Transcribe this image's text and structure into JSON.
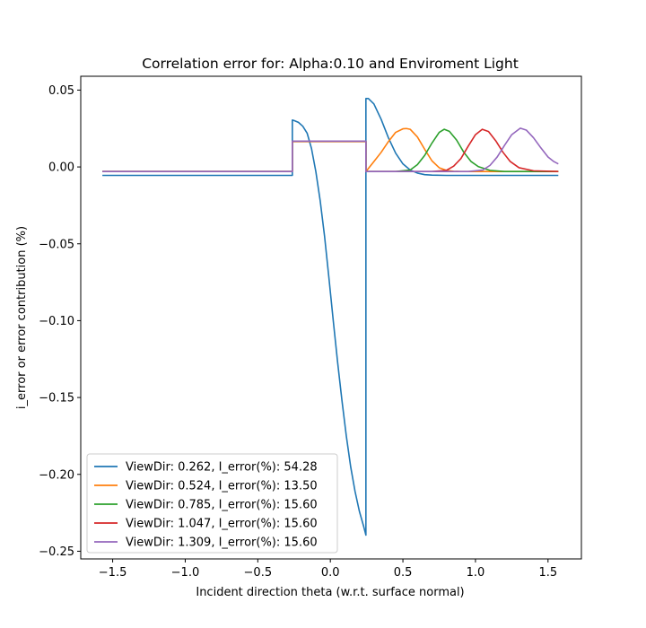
{
  "chart_data": {
    "type": "line",
    "title": "Correlation error for: Alpha:0.10 and Enviroment Light",
    "xlabel": "Incident direction theta (w.r.t. surface normal)",
    "ylabel": "i_error or error contribution (%)",
    "xlim": [
      -1.72,
      1.73
    ],
    "ylim": [
      -0.255,
      0.059
    ],
    "xticks": [
      -1.5,
      -1.0,
      -0.5,
      0.0,
      0.5,
      1.0,
      1.5
    ],
    "xtick_labels": [
      "−1.5",
      "−1.0",
      "−0.5",
      "0.0",
      "0.5",
      "1.0",
      "1.5"
    ],
    "yticks": [
      0.05,
      0.0,
      -0.05,
      -0.1,
      -0.15,
      -0.2,
      -0.25
    ],
    "ytick_labels": [
      "0.05",
      "0.00",
      "−0.05",
      "−0.10",
      "−0.15",
      "−0.20",
      "−0.25"
    ],
    "grid": false,
    "legend_position": "lower-left",
    "series": [
      {
        "name": "ViewDir: 0.262, I_error(%): 54.28",
        "color": "#1f77b4",
        "x": [
          -1.571,
          -0.262,
          -0.262,
          -0.25,
          -0.22,
          -0.19,
          -0.16,
          -0.13,
          -0.1,
          -0.07,
          -0.04,
          -0.01,
          0.02,
          0.05,
          0.08,
          0.11,
          0.14,
          0.17,
          0.2,
          0.23,
          0.245,
          0.245,
          0.262,
          0.3,
          0.35,
          0.4,
          0.45,
          0.5,
          0.55,
          0.6,
          0.65,
          0.7,
          0.8,
          1.0,
          1.571
        ],
        "y": [
          -0.0055,
          -0.0055,
          0.0305,
          0.0302,
          0.029,
          0.0265,
          0.022,
          0.012,
          -0.003,
          -0.022,
          -0.045,
          -0.072,
          -0.1,
          -0.127,
          -0.152,
          -0.175,
          -0.195,
          -0.211,
          -0.224,
          -0.234,
          -0.2395,
          0.0445,
          0.0445,
          0.041,
          0.031,
          0.019,
          0.009,
          0.002,
          -0.002,
          -0.004,
          -0.005,
          -0.0053,
          -0.0055,
          -0.0055,
          -0.0055
        ]
      },
      {
        "name": "ViewDir: 0.524, I_error(%): 13.50",
        "color": "#ff7f0e",
        "x": [
          -1.571,
          -0.262,
          -0.262,
          0.245,
          0.245,
          0.3,
          0.35,
          0.4,
          0.45,
          0.5,
          0.524,
          0.55,
          0.6,
          0.65,
          0.7,
          0.75,
          0.8,
          0.85,
          0.9,
          1.0,
          1.571
        ],
        "y": [
          -0.003,
          -0.003,
          0.0165,
          0.0165,
          -0.003,
          0.0035,
          0.0095,
          0.0165,
          0.0225,
          0.0248,
          0.025,
          0.0245,
          0.0195,
          0.0115,
          0.004,
          -0.0005,
          -0.0022,
          -0.0028,
          -0.003,
          -0.003,
          -0.003
        ]
      },
      {
        "name": "ViewDir: 0.785, I_error(%): 15.60",
        "color": "#2ca02c",
        "x": [
          -1.571,
          -0.262,
          -0.262,
          0.245,
          0.245,
          0.45,
          0.55,
          0.6,
          0.65,
          0.7,
          0.75,
          0.785,
          0.82,
          0.87,
          0.92,
          0.97,
          1.02,
          1.1,
          1.2,
          1.571
        ],
        "y": [
          -0.003,
          -0.003,
          0.0168,
          0.0168,
          -0.003,
          -0.003,
          -0.002,
          0.0015,
          0.0075,
          0.0155,
          0.0225,
          0.0245,
          0.0232,
          0.0175,
          0.0095,
          0.0035,
          0.0002,
          -0.0022,
          -0.003,
          -0.003
        ]
      },
      {
        "name": "ViewDir: 1.047, I_error(%): 15.60",
        "color": "#d62728",
        "x": [
          -1.571,
          -0.262,
          -0.262,
          0.245,
          0.245,
          0.7,
          0.8,
          0.85,
          0.9,
          0.95,
          1.0,
          1.047,
          1.09,
          1.14,
          1.19,
          1.24,
          1.3,
          1.4,
          1.571
        ],
        "y": [
          -0.003,
          -0.003,
          0.0168,
          0.0168,
          -0.003,
          -0.003,
          -0.0022,
          0.0005,
          0.0055,
          0.0135,
          0.021,
          0.0245,
          0.023,
          0.017,
          0.0095,
          0.0035,
          -0.0005,
          -0.0025,
          -0.003
        ]
      },
      {
        "name": "ViewDir: 1.309, I_error(%): 15.60",
        "color": "#9467bd",
        "x": [
          -1.571,
          -0.262,
          -0.262,
          0.245,
          0.245,
          0.95,
          1.05,
          1.1,
          1.15,
          1.2,
          1.25,
          1.309,
          1.35,
          1.4,
          1.45,
          1.5,
          1.54,
          1.571
        ],
        "y": [
          -0.003,
          -0.003,
          0.0168,
          0.0168,
          -0.003,
          -0.003,
          -0.002,
          0.001,
          0.0065,
          0.014,
          0.021,
          0.0252,
          0.024,
          0.019,
          0.0125,
          0.0065,
          0.0035,
          0.002
        ]
      }
    ]
  }
}
